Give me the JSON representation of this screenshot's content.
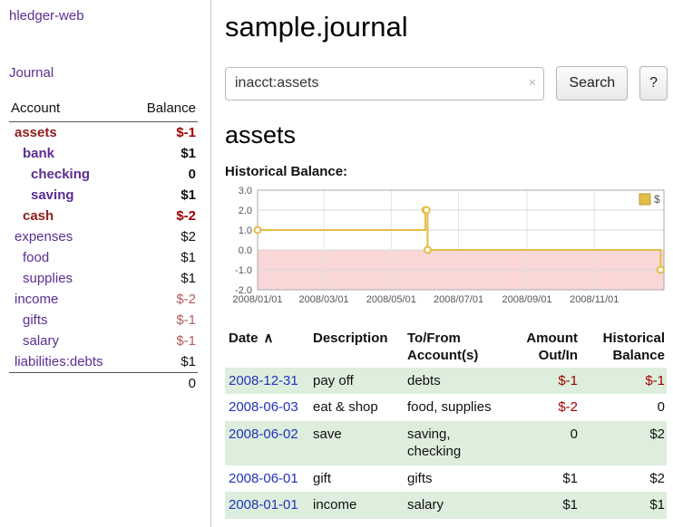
{
  "colors": {
    "purple": "#5b2d91",
    "maroon": "#8f1d1d",
    "negative": "#a40000",
    "negative_soft": "#b25b5b",
    "date_link": "#2233bb",
    "stripe": "#ddeedd",
    "chart_line": "#e3bd45",
    "chart_legend_border": "#b99a30",
    "chart_negative_fill": "#f9d7d7"
  },
  "sidebar": {
    "app_title": "hledger-web",
    "journal_link": "Journal",
    "accounts": {
      "col_account": "Account",
      "col_balance": "Balance",
      "rows": [
        {
          "name": "assets",
          "balance": "$-1",
          "indent": 0,
          "bold": true,
          "name_style": "maroon",
          "balance_style": "negative"
        },
        {
          "name": "bank",
          "balance": "$1",
          "indent": 1,
          "bold": true,
          "name_style": "purple",
          "balance_style": "normal"
        },
        {
          "name": "checking",
          "balance": "0",
          "indent": 2,
          "bold": true,
          "name_style": "purple",
          "balance_style": "normal"
        },
        {
          "name": "saving",
          "balance": "$1",
          "indent": 2,
          "bold": true,
          "name_style": "purple",
          "balance_style": "normal"
        },
        {
          "name": "cash",
          "balance": "$-2",
          "indent": 1,
          "bold": true,
          "name_style": "maroon",
          "balance_style": "negative"
        },
        {
          "name": "expenses",
          "balance": "$2",
          "indent": 0,
          "bold": false,
          "name_style": "purple",
          "balance_style": "normal"
        },
        {
          "name": "food",
          "balance": "$1",
          "indent": 1,
          "bold": false,
          "name_style": "purple",
          "balance_style": "normal"
        },
        {
          "name": "supplies",
          "balance": "$1",
          "indent": 1,
          "bold": false,
          "name_style": "purple",
          "balance_style": "normal"
        },
        {
          "name": "income",
          "balance": "$-2",
          "indent": 0,
          "bold": false,
          "name_style": "purple",
          "balance_style": "negative-soft"
        },
        {
          "name": "gifts",
          "balance": "$-1",
          "indent": 1,
          "bold": false,
          "name_style": "purple",
          "balance_style": "negative-soft"
        },
        {
          "name": "salary",
          "balance": "$-1",
          "indent": 1,
          "bold": false,
          "name_style": "purple",
          "balance_style": "negative-soft"
        },
        {
          "name": "liabilities:debts",
          "balance": "$1",
          "indent": 0,
          "bold": false,
          "name_style": "purple",
          "balance_style": "normal"
        }
      ],
      "total": "0"
    }
  },
  "main": {
    "title": "sample.journal",
    "search": {
      "value": "inacct:assets",
      "clear_icon": "×",
      "button_label": "Search",
      "help_label": "?"
    },
    "account_heading": "assets",
    "chart_label": "Historical Balance:",
    "register": {
      "sort_icon": "∧",
      "columns": [
        {
          "line1": "Date",
          "line2": "",
          "align": "left",
          "sort": true
        },
        {
          "line1": "Description",
          "line2": "",
          "align": "left"
        },
        {
          "line1": "To/From",
          "line2": "Account(s)",
          "align": "left"
        },
        {
          "line1": "Amount",
          "line2": "Out/In",
          "align": "right"
        },
        {
          "line1": "Historical",
          "line2": "Balance",
          "align": "right"
        }
      ],
      "rows": [
        {
          "date": "2008-12-31",
          "description": "pay off",
          "accounts": "debts",
          "amount": "$-1",
          "amount_negative": true,
          "balance": "$-1",
          "balance_negative": true
        },
        {
          "date": "2008-06-03",
          "description": "eat & shop",
          "accounts": "food, supplies",
          "amount": "$-2",
          "amount_negative": true,
          "balance": "0",
          "balance_negative": false
        },
        {
          "date": "2008-06-02",
          "description": "save",
          "accounts": "saving,\nchecking",
          "amount": "0",
          "amount_negative": false,
          "balance": "$2",
          "balance_negative": false
        },
        {
          "date": "2008-06-01",
          "description": "gift",
          "accounts": "gifts",
          "amount": "$1",
          "amount_negative": false,
          "balance": "$2",
          "balance_negative": false
        },
        {
          "date": "2008-01-01",
          "description": "income",
          "accounts": "salary",
          "amount": "$1",
          "amount_negative": false,
          "balance": "$1",
          "balance_negative": false
        }
      ]
    }
  },
  "chart_data": {
    "type": "line",
    "step": true,
    "title": "Historical Balance:",
    "ylim": [
      -2,
      3
    ],
    "y_ticks": [
      "3.0",
      "2.0",
      "1.0",
      "0.0",
      "-1.0",
      "-2.0"
    ],
    "x_ticks": [
      "2008/01/01",
      "2008/03/01",
      "2008/05/01",
      "2008/07/01",
      "2008/09/01",
      "2008/11/01"
    ],
    "series": [
      {
        "name": "$",
        "points": [
          [
            "2008-01-01",
            1
          ],
          [
            "2008-06-01",
            2
          ],
          [
            "2008-06-02",
            2
          ],
          [
            "2008-06-03",
            0
          ],
          [
            "2008-12-31",
            -1
          ]
        ]
      }
    ],
    "negative_region_shaded": true,
    "legend_position": "top-right",
    "grid": true
  }
}
